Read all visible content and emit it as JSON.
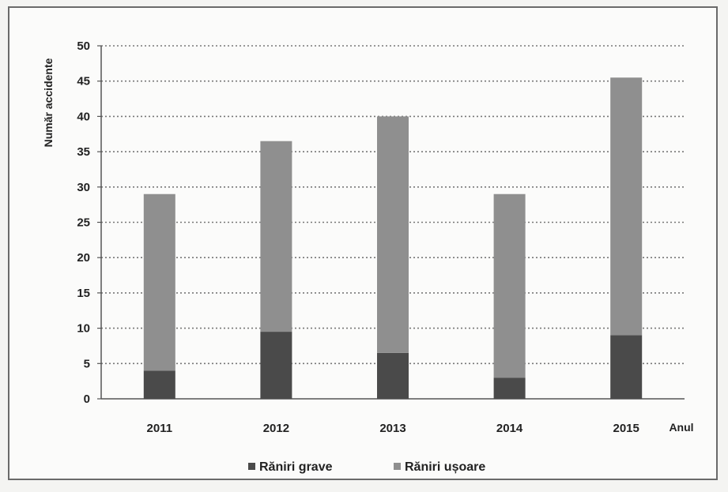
{
  "chart_data": {
    "type": "bar",
    "stacked": true,
    "ylabel": "Număr accidente",
    "xlabel": "Anul",
    "ylim": [
      0,
      50
    ],
    "yticks": [
      0,
      5,
      10,
      15,
      20,
      25,
      30,
      35,
      40,
      45,
      50
    ],
    "categories": [
      "2011",
      "2012",
      "2013",
      "2014",
      "2015"
    ],
    "grid": "horizontal dotted",
    "legend_position": "bottom",
    "series": [
      {
        "name": "Răniri grave",
        "values": [
          4,
          9.5,
          6.5,
          3,
          9
        ],
        "color": "#4a4a4a"
      },
      {
        "name": "Răniri ușoare",
        "values": [
          25,
          27,
          33.5,
          26,
          36.5
        ],
        "color": "#8f8f8f"
      }
    ]
  }
}
